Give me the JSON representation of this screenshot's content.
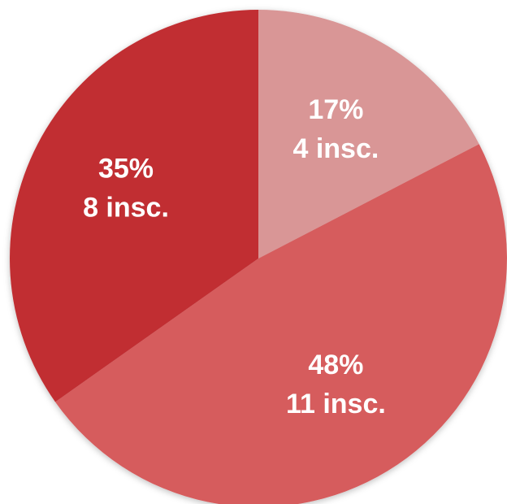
{
  "chart_data": {
    "type": "pie",
    "start": "12 o'clock",
    "direction": "clockwise",
    "slices": [
      {
        "percent_label": "17%",
        "count_label": "4 insc.",
        "value": 4,
        "color": "#d99696"
      },
      {
        "percent_label": "48%",
        "count_label": "11 insc.",
        "value": 11,
        "color": "#d65c5d"
      },
      {
        "percent_label": "35%",
        "count_label": "8 insc.",
        "value": 8,
        "color": "#c12f33"
      }
    ]
  }
}
